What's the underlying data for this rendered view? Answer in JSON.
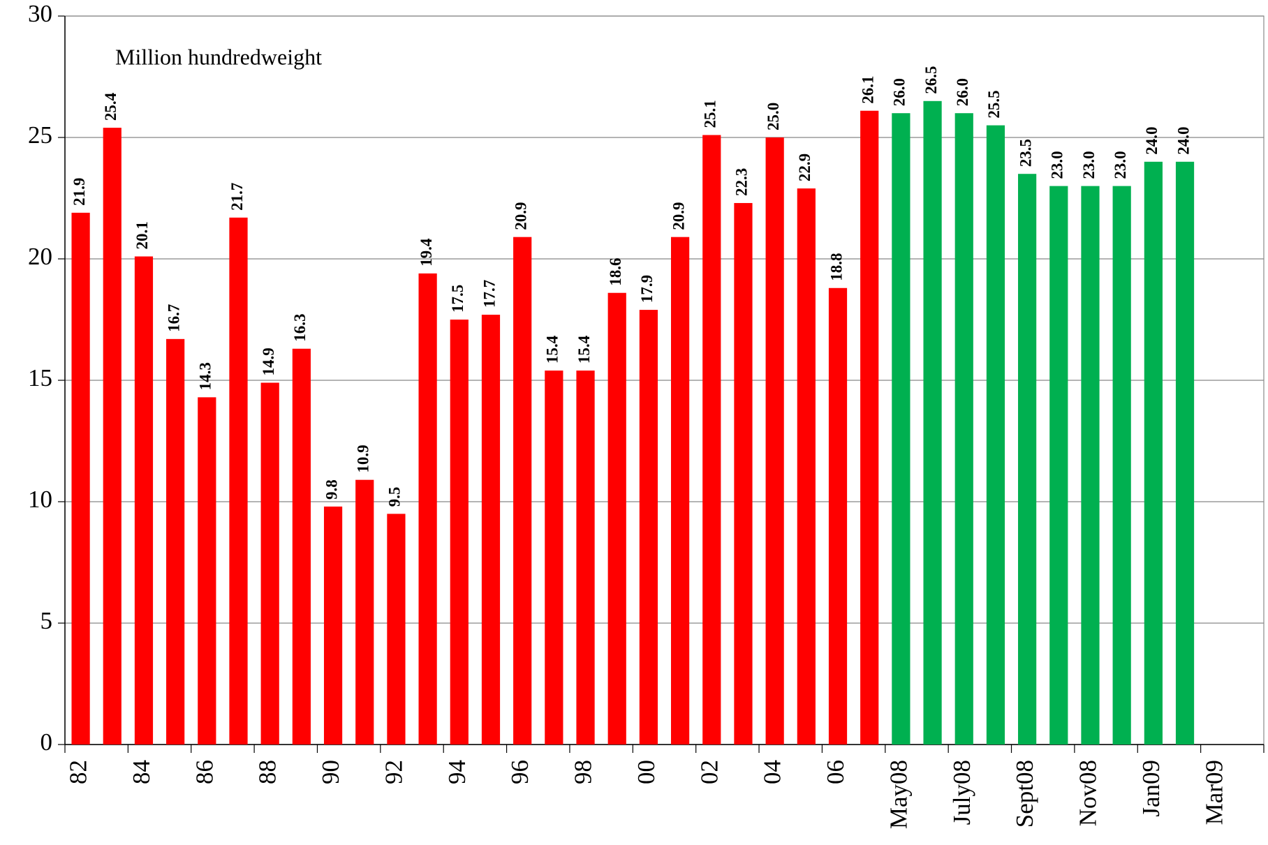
{
  "chart_data": {
    "type": "bar",
    "annotation": "Million hundredweight",
    "categories": [
      "82",
      null,
      "84",
      null,
      "86",
      null,
      "88",
      null,
      "90",
      null,
      "92",
      null,
      "94",
      null,
      "96",
      null,
      "98",
      null,
      "00",
      null,
      "02",
      null,
      "04",
      null,
      "06",
      null,
      "May08",
      null,
      "July08",
      null,
      "Sept08",
      null,
      "Nov08",
      null,
      "Jan09",
      null,
      "Mar09",
      null
    ],
    "values": [
      21.9,
      25.4,
      20.1,
      16.7,
      14.3,
      21.7,
      14.9,
      16.3,
      9.8,
      10.9,
      9.5,
      19.4,
      17.5,
      17.7,
      20.9,
      15.4,
      15.4,
      18.6,
      17.9,
      20.9,
      25.1,
      22.3,
      25.0,
      22.9,
      18.8,
      26.1,
      26.0,
      26.5,
      26.0,
      25.5,
      23.5,
      23.0,
      23.0,
      23.0,
      24.0,
      24.0,
      null,
      null
    ],
    "value_labels": [
      "21.9",
      "25.4",
      "20.1",
      "16.7",
      "14.3",
      "21.7",
      "14.9",
      "16.3",
      "9.8",
      "10.9",
      "9.5",
      "19.4",
      "17.5",
      "17.7",
      "20.9",
      "15.4",
      "15.4",
      "18.6",
      "17.9",
      "20.9",
      "25.1",
      "22.3",
      "25.0",
      "22.9",
      "18.8",
      "26.1",
      "26.0",
      "26.5",
      "26.0",
      "25.5",
      "23.5",
      "23.0",
      "23.0",
      "23.0",
      "24.0",
      "24.0",
      null,
      null
    ],
    "colors": [
      "#ff0000",
      "#ff0000",
      "#ff0000",
      "#ff0000",
      "#ff0000",
      "#ff0000",
      "#ff0000",
      "#ff0000",
      "#ff0000",
      "#ff0000",
      "#ff0000",
      "#ff0000",
      "#ff0000",
      "#ff0000",
      "#ff0000",
      "#ff0000",
      "#ff0000",
      "#ff0000",
      "#ff0000",
      "#ff0000",
      "#ff0000",
      "#ff0000",
      "#ff0000",
      "#ff0000",
      "#ff0000",
      "#ff0000",
      "#00b050",
      "#00b050",
      "#00b050",
      "#00b050",
      "#00b050",
      "#00b050",
      "#00b050",
      "#00b050",
      "#00b050",
      "#00b050",
      null,
      null
    ],
    "ylim": [
      0,
      30
    ],
    "yticks": [
      0,
      5,
      10,
      15,
      20,
      25,
      30
    ],
    "grid": true
  }
}
